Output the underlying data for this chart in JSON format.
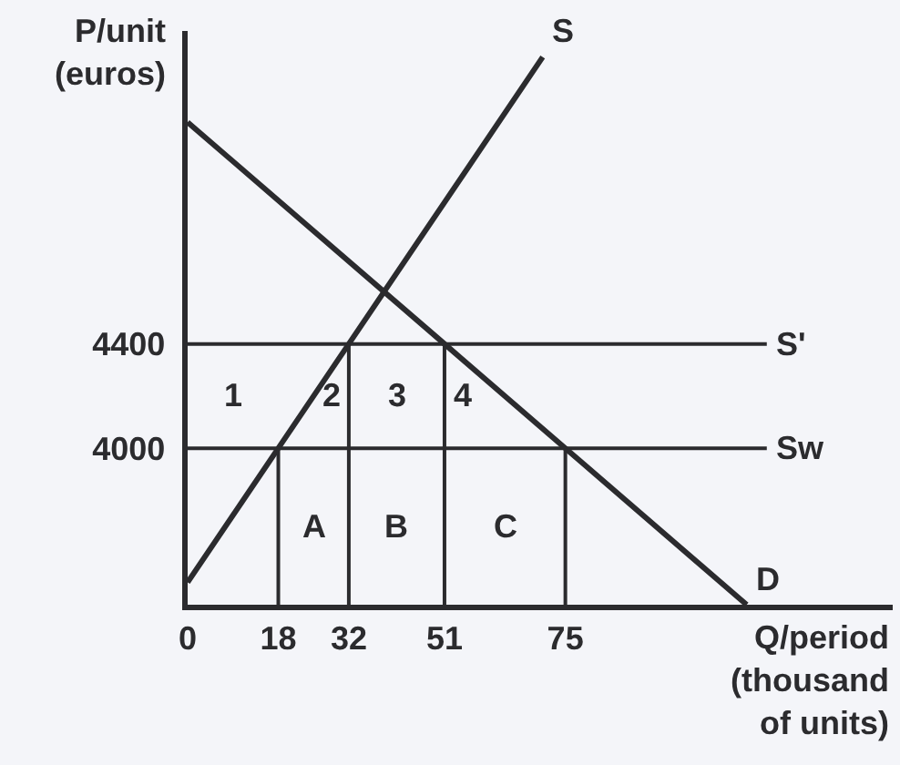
{
  "chart_data": {
    "type": "line",
    "xlabel": "Q/period (thousand of units)",
    "ylabel": "P/unit (euros)",
    "xlim": [
      0,
      140
    ],
    "ylim": [
      3400,
      5600
    ],
    "xticks": [
      0,
      18,
      32,
      51,
      75
    ],
    "yticks": [
      4000,
      4400
    ],
    "grid": false,
    "marker": "none",
    "series": [
      {
        "name": "S",
        "color": "#2b2b2e",
        "x": [
          0,
          18,
          32,
          70.5
        ],
        "values": [
          3486,
          4000,
          4400,
          5500
        ]
      },
      {
        "name": "D",
        "color": "#2b2b2e",
        "x": [
          0,
          51,
          75,
          111
        ],
        "values": [
          5250,
          4400,
          4000,
          3400
        ]
      },
      {
        "name": "S'",
        "color": "#2b2b2e",
        "x": [
          0,
          115
        ],
        "values": [
          4400,
          4400
        ]
      },
      {
        "name": "Sw",
        "color": "#2b2b2e",
        "x": [
          0,
          115
        ],
        "values": [
          4000,
          4000
        ]
      },
      {
        "color": "#2b2b2e",
        "x": [
          18,
          18
        ],
        "values": [
          3400,
          4000
        ]
      },
      {
        "color": "#2b2b2e",
        "x": [
          32,
          32
        ],
        "values": [
          3400,
          4400
        ]
      },
      {
        "color": "#2b2b2e",
        "x": [
          51,
          51
        ],
        "values": [
          3400,
          4400
        ]
      },
      {
        "color": "#2b2b2e",
        "x": [
          75,
          75
        ],
        "values": [
          3400,
          4000
        ]
      }
    ],
    "annotations": [
      "1",
      "2",
      "3",
      "4",
      "A",
      "B",
      "C"
    ]
  }
}
